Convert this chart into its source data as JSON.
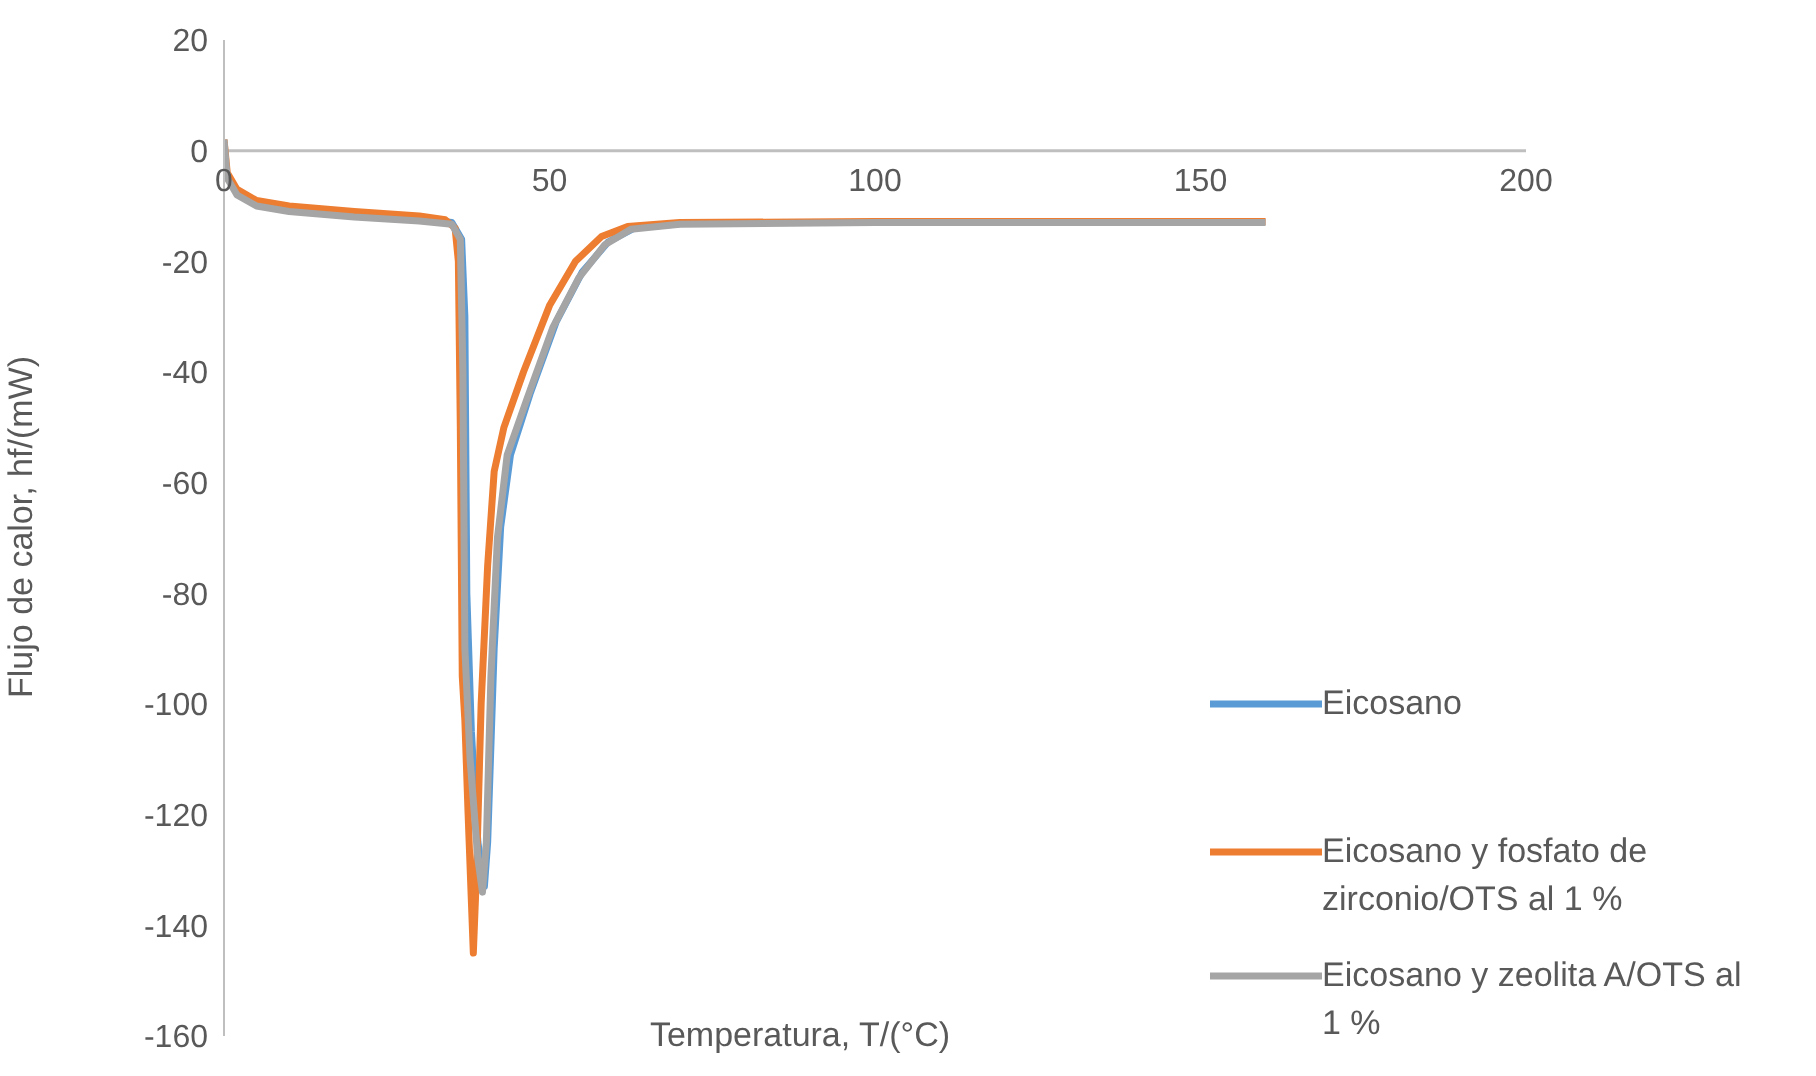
{
  "chart_data": {
    "type": "line",
    "xlabel": "Temperatura, T/(°C)",
    "ylabel": "Flujo de calor, hf/(mW)",
    "xlim": [
      0,
      200
    ],
    "xticks": [
      0,
      50,
      100,
      150,
      200
    ],
    "ylim": [
      -160,
      20
    ],
    "yticks": [
      -160,
      -140,
      -120,
      -100,
      -80,
      -60,
      -40,
      -20,
      0,
      20
    ],
    "grid": false,
    "legend": "right",
    "marker": "none",
    "line_style": "solid",
    "series": [
      {
        "name": "Eicosano",
        "color": "#5b9bd5",
        "x": [
          30,
          35,
          36.5,
          37,
          37.3,
          38,
          39,
          40,
          40.5,
          41.5,
          42.5,
          44,
          47,
          51,
          55,
          59,
          63,
          70
        ],
        "values": [
          -12.3,
          -13,
          -16,
          -30,
          -80,
          -105,
          -125,
          -133,
          -125,
          -90,
          -68,
          -55,
          -44,
          -31,
          -22,
          -16.5,
          -14,
          -13.2
        ]
      },
      {
        "name": "Eicosano y fosfato de zirconio/OTS al 1 %",
        "color": "#ed7d31",
        "x": [
          0,
          0.5,
          2,
          5,
          10,
          20,
          30,
          34,
          35.5,
          36,
          36.3,
          36.6,
          37,
          37.5,
          38.3,
          38.8,
          39.5,
          40.5,
          41.5,
          43,
          46,
          50,
          54,
          58,
          62,
          70,
          100,
          160
        ],
        "values": [
          2,
          -4,
          -7,
          -9,
          -10,
          -11,
          -11.8,
          -12.5,
          -14,
          -20,
          -50,
          -95,
          -103,
          -120,
          -145,
          -130,
          -100,
          -75,
          -58,
          -50,
          -40,
          -28,
          -20,
          -15.5,
          -13.7,
          -13,
          -12.8,
          -12.8
        ]
      },
      {
        "name": "Eicosano y zeolita A/OTS al 1 %",
        "color": "#a5a5a5",
        "x": [
          0,
          0.5,
          2,
          5,
          10,
          20,
          30,
          35,
          36.3,
          36.7,
          37,
          37.8,
          39,
          39.7,
          40.3,
          41,
          42,
          43.5,
          46.5,
          50.5,
          54.5,
          58.5,
          62.5,
          70,
          100,
          160
        ],
        "values": [
          2,
          -5,
          -8,
          -10,
          -11,
          -12,
          -12.7,
          -13.3,
          -16,
          -40,
          -90,
          -110,
          -128,
          -134,
          -125,
          -95,
          -70,
          -55,
          -45,
          -32,
          -23,
          -17,
          -14.2,
          -13.3,
          -13,
          -13
        ]
      }
    ]
  }
}
